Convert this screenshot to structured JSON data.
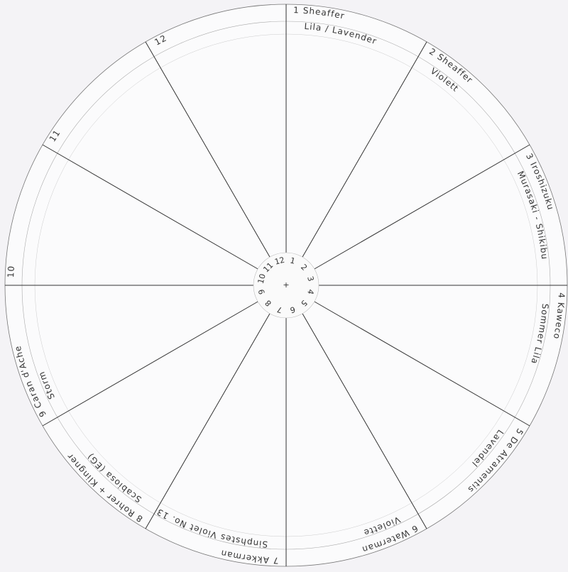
{
  "wheel": {
    "sectors": [
      {
        "number": "1",
        "line1": "1 Sheaffer",
        "line2": "Lila / Lavender",
        "color": "#a46de6",
        "filled": true
      },
      {
        "number": "2",
        "line1": "2 Sheaffer",
        "line2": "Violett",
        "color": "#8f4a7c",
        "filled": true
      },
      {
        "number": "3",
        "line1": "3 Iroshizuku",
        "line2": "Murasaki - Shikibu",
        "color": "#7d58d2",
        "filled": true
      },
      {
        "number": "4",
        "line1": "4 Kaweco",
        "line2": "Sommer Lila",
        "color": "#6f2f5d",
        "filled": true
      },
      {
        "number": "5",
        "line1": "5 De Atramentis",
        "line2": "Lavendel",
        "color": "#9836de",
        "filled": true
      },
      {
        "number": "6",
        "line1": "6 Waterman",
        "line2": "Violette",
        "color": "#8a62e0",
        "filled": true
      },
      {
        "number": "7",
        "line1": "7 Akkerman",
        "line2": "Sinphstes Violet No. 13",
        "color": "#7b3ab6",
        "filled": true
      },
      {
        "number": "8",
        "line1": "8 Rohrer + Klingner",
        "line2": "Scabiosa (EG)",
        "color": "#5f4557",
        "filled": true
      },
      {
        "number": "9",
        "line1": "9 Caran d'Ache",
        "line2": "Storm",
        "color": "#7b2f64",
        "filled": true
      },
      {
        "number": "10",
        "line1": "10",
        "line2": "",
        "color": "#ffffff",
        "filled": false
      },
      {
        "number": "11",
        "line1": "11",
        "line2": "",
        "color": "#ffffff",
        "filled": false
      },
      {
        "number": "12",
        "line1": "12",
        "line2": "",
        "color": "#ffffff",
        "filled": false
      }
    ]
  }
}
